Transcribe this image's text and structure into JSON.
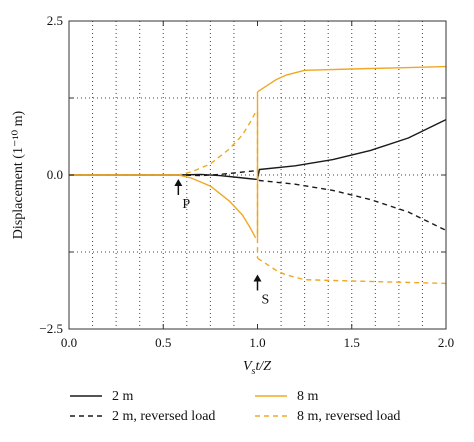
{
  "chart_data": {
    "type": "line",
    "xlabel": "V",
    "xlabel_sub": "s",
    "xlabel_rest": "t/Z",
    "ylabel": "Displacement (1⁻¹⁰ m)",
    "xlim": [
      0.0,
      2.0
    ],
    "ylim": [
      -2.5,
      2.5
    ],
    "xticks": [
      0.0,
      0.5,
      1.0,
      1.5,
      2.0
    ],
    "xtick_labels": [
      "0.0",
      "0.5",
      "1.0",
      "1.5",
      "2.0"
    ],
    "yticks": [
      -2.5,
      -1.25,
      0.0,
      1.25,
      2.5
    ],
    "ytick_labels": [
      "−2.5",
      "",
      "0.0",
      "",
      "2.5"
    ],
    "grid": true,
    "legend_position": "bottom",
    "colors": {
      "black": "#1a1a1a",
      "orange": "#f0a824"
    },
    "annotations": [
      {
        "label": "P",
        "x": 0.58
      },
      {
        "label": "S",
        "x": 1.0
      }
    ],
    "series": [
      {
        "name": "2 m",
        "color": "#1a1a1a",
        "dash": "solid",
        "x": [
          0.0,
          0.58,
          0.7,
          0.8,
          0.9,
          0.99,
          1.0,
          1.01,
          1.2,
          1.4,
          1.6,
          1.8,
          2.0
        ],
        "y": [
          0.0,
          0.0,
          0.01,
          -0.01,
          -0.04,
          -0.07,
          -0.07,
          0.09,
          0.15,
          0.25,
          0.4,
          0.6,
          0.9
        ]
      },
      {
        "name": "2 m, reversed load",
        "color": "#1a1a1a",
        "dash": "dashed",
        "x": [
          0.0,
          0.58,
          0.7,
          0.8,
          0.9,
          0.99,
          1.0,
          1.01,
          1.2,
          1.4,
          1.6,
          1.8,
          2.0
        ],
        "y": [
          0.0,
          0.0,
          -0.01,
          0.01,
          0.04,
          0.07,
          0.07,
          -0.09,
          -0.15,
          -0.25,
          -0.4,
          -0.6,
          -0.9
        ]
      },
      {
        "name": "8 m",
        "color": "#f0a824",
        "dash": "solid",
        "x": [
          0.0,
          0.58,
          0.65,
          0.75,
          0.85,
          0.92,
          0.96,
          0.99,
          1.0,
          1.05,
          1.1,
          1.15,
          1.25,
          1.5,
          1.75,
          2.0
        ],
        "y": [
          0.0,
          0.0,
          -0.05,
          -0.18,
          -0.42,
          -0.65,
          -0.85,
          -1.02,
          1.35,
          1.45,
          1.55,
          1.62,
          1.7,
          1.72,
          1.74,
          1.76
        ],
        "break_after": 7
      },
      {
        "name": "8 m, reversed load",
        "color": "#f0a824",
        "dash": "dashed",
        "x": [
          0.0,
          0.58,
          0.65,
          0.75,
          0.85,
          0.92,
          0.96,
          0.99,
          1.0,
          1.05,
          1.1,
          1.15,
          1.25,
          1.5,
          1.75,
          2.0
        ],
        "y": [
          0.0,
          0.0,
          0.05,
          0.18,
          0.42,
          0.65,
          0.85,
          1.02,
          -1.35,
          -1.45,
          -1.55,
          -1.62,
          -1.7,
          -1.72,
          -1.74,
          -1.76
        ],
        "break_after": 7
      }
    ]
  }
}
